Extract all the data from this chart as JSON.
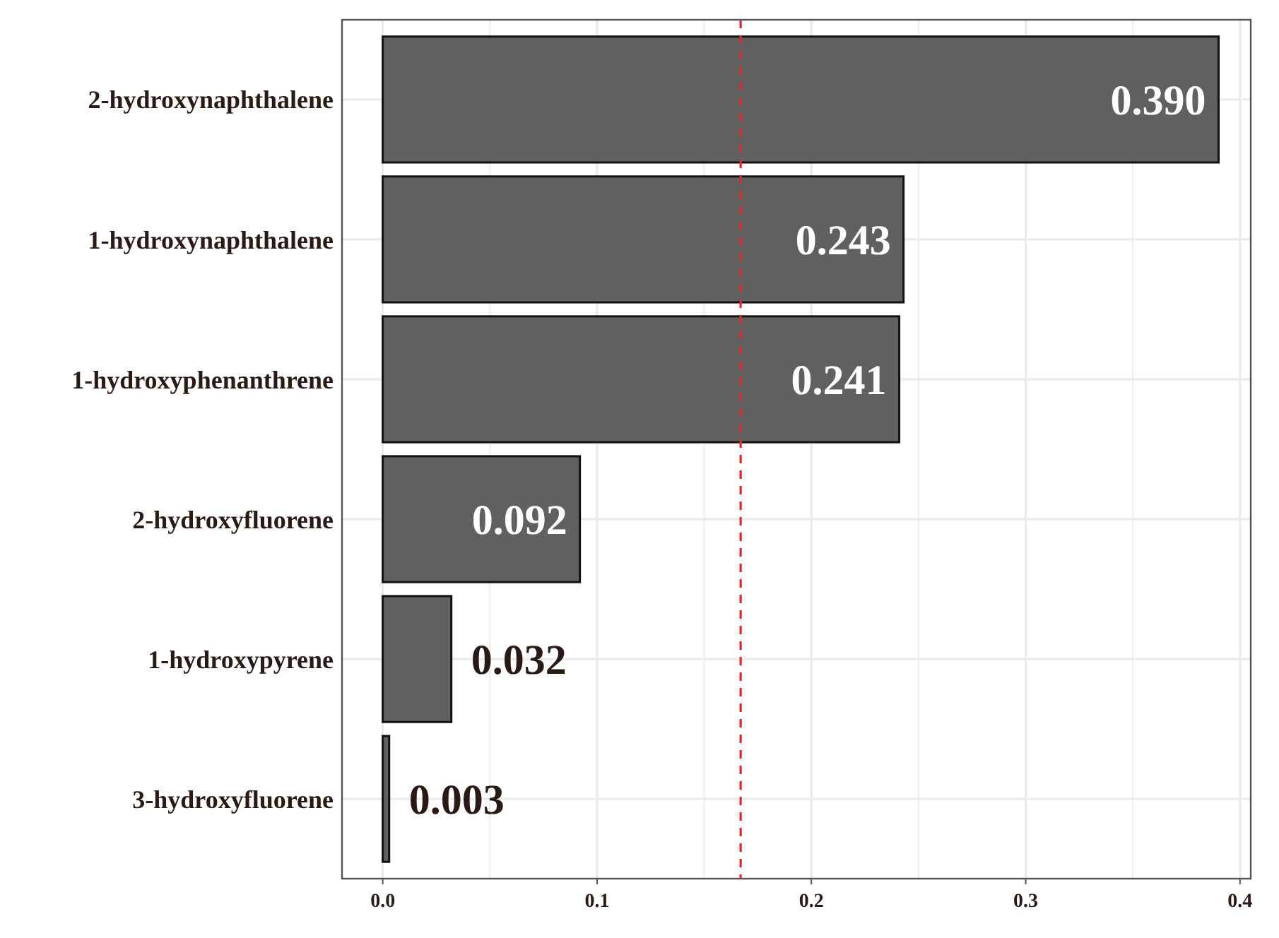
{
  "chart_data": {
    "type": "bar",
    "orientation": "horizontal",
    "categories": [
      "2-hydroxynaphthalene",
      "1-hydroxynaphthalene",
      "1-hydroxyphenanthrene",
      "2-hydroxyfluorene",
      "1-hydroxypyrene",
      "3-hydroxyfluorene"
    ],
    "values": [
      0.39,
      0.243,
      0.241,
      0.092,
      0.032,
      0.003
    ],
    "color": "#5f6060",
    "value_labels": [
      "0.390",
      "0.243",
      "0.241",
      "0.092",
      "0.032",
      "0.003"
    ],
    "xlim": [
      -0.019,
      0.405
    ],
    "xticks": [
      {
        "value": 0,
        "label": "0.0"
      },
      0.1,
      0.2,
      0.3,
      0.4
    ],
    "ref_lines": [
      {
        "axis": "x",
        "value": 0.167,
        "color": "#e8262a",
        "line_style": "dashed"
      }
    ],
    "grid": true
  }
}
